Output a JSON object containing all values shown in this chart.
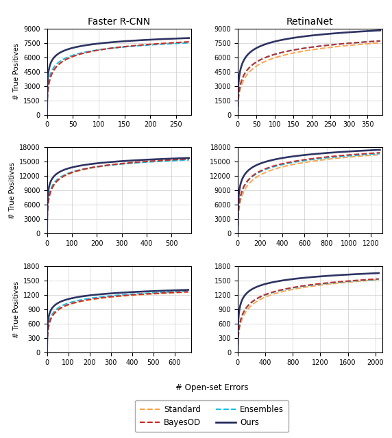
{
  "col_titles": [
    "Faster R-CNN",
    "RetinaNet"
  ],
  "colors": {
    "Standard": "#FFA040",
    "BayesOD": "#CC2222",
    "Ensembles": "#00BFEE",
    "Ours": "#1C2356"
  },
  "legend_order": [
    "Standard",
    "BayesOD",
    "Ensembles",
    "Ours"
  ],
  "xlabel": "# Open-set Errors",
  "ylabel": "# True Positives",
  "row_configs": [
    {
      "frcnn": {
        "xlim": [
          0,
          280
        ],
        "ylim": [
          0,
          9000
        ],
        "xticks": [
          0,
          50,
          100,
          150,
          200,
          250
        ],
        "yticks": [
          0,
          1500,
          3000,
          4500,
          6000,
          7500,
          9000
        ],
        "curves": {
          "Standard": {
            "x_max": 275,
            "y_sat": 7600,
            "knee": 8,
            "power": 0.38
          },
          "BayesOD": {
            "x_max": 275,
            "y_sat": 7600,
            "knee": 8,
            "power": 0.38
          },
          "Ensembles": {
            "x_max": 275,
            "y_sat": 7500,
            "knee": 6,
            "power": 0.35
          },
          "Ours": {
            "x_max": 275,
            "y_sat": 8000,
            "knee": 3,
            "power": 0.3
          }
        }
      },
      "retina": {
        "xlim": [
          0,
          390
        ],
        "ylim": [
          0,
          9000
        ],
        "xticks": [
          0,
          50,
          100,
          150,
          200,
          250,
          300,
          350
        ],
        "yticks": [
          0,
          1500,
          3000,
          4500,
          6000,
          7500,
          9000
        ],
        "curves": {
          "Standard": {
            "x_max": 385,
            "y_sat": 7500,
            "knee": 20,
            "power": 0.45
          },
          "BayesOD": {
            "x_max": 385,
            "y_sat": 7700,
            "knee": 15,
            "power": 0.42
          },
          "Ensembles": {
            "x_max": 385,
            "y_sat": 7700,
            "knee": 15,
            "power": 0.42
          },
          "Ours": {
            "x_max": 385,
            "y_sat": 8800,
            "knee": 8,
            "power": 0.35
          }
        }
      }
    },
    {
      "frcnn": {
        "xlim": [
          0,
          580
        ],
        "ylim": [
          0,
          18000
        ],
        "xticks": [
          0,
          100,
          200,
          300,
          400,
          500
        ],
        "yticks": [
          0,
          3000,
          6000,
          9000,
          12000,
          15000,
          18000
        ],
        "curves": {
          "Standard": {
            "x_max": 570,
            "y_sat": 15500,
            "knee": 10,
            "power": 0.38
          },
          "BayesOD": {
            "x_max": 570,
            "y_sat": 15600,
            "knee": 10,
            "power": 0.38
          },
          "Ensembles": {
            "x_max": 570,
            "y_sat": 15400,
            "knee": 8,
            "power": 0.36
          },
          "Ours": {
            "x_max": 570,
            "y_sat": 15800,
            "knee": 5,
            "power": 0.3
          }
        }
      },
      "retina": {
        "xlim": [
          0,
          1300
        ],
        "ylim": [
          0,
          18000
        ],
        "xticks": [
          0,
          200,
          400,
          600,
          800,
          1000,
          1200
        ],
        "yticks": [
          0,
          3000,
          6000,
          9000,
          12000,
          15000,
          18000
        ],
        "curves": {
          "Standard": {
            "x_max": 1280,
            "y_sat": 16500,
            "knee": 40,
            "power": 0.45
          },
          "BayesOD": {
            "x_max": 1280,
            "y_sat": 16900,
            "knee": 30,
            "power": 0.42
          },
          "Ensembles": {
            "x_max": 1280,
            "y_sat": 16700,
            "knee": 30,
            "power": 0.42
          },
          "Ours": {
            "x_max": 1280,
            "y_sat": 17500,
            "knee": 15,
            "power": 0.35
          }
        }
      }
    },
    {
      "frcnn": {
        "xlim": [
          0,
          680
        ],
        "ylim": [
          0,
          1800
        ],
        "xticks": [
          0,
          100,
          200,
          300,
          400,
          500,
          600
        ],
        "yticks": [
          0,
          300,
          600,
          900,
          1200,
          1500,
          1800
        ],
        "curves": {
          "Standard": {
            "x_max": 665,
            "y_sat": 1260,
            "knee": 12,
            "power": 0.4
          },
          "BayesOD": {
            "x_max": 665,
            "y_sat": 1270,
            "knee": 12,
            "power": 0.4
          },
          "Ensembles": {
            "x_max": 665,
            "y_sat": 1280,
            "knee": 10,
            "power": 0.38
          },
          "Ours": {
            "x_max": 665,
            "y_sat": 1310,
            "knee": 6,
            "power": 0.32
          }
        }
      },
      "retina": {
        "xlim": [
          0,
          2100
        ],
        "ylim": [
          0,
          1800
        ],
        "xticks": [
          0,
          400,
          800,
          1200,
          1600,
          2000
        ],
        "yticks": [
          0,
          300,
          600,
          900,
          1200,
          1500,
          1800
        ],
        "curves": {
          "Standard": {
            "x_max": 2050,
            "y_sat": 1520,
            "knee": 80,
            "power": 0.45
          },
          "BayesOD": {
            "x_max": 2050,
            "y_sat": 1540,
            "knee": 60,
            "power": 0.43
          },
          "Ensembles": {
            "x_max": 2050,
            "y_sat": 1530,
            "knee": 60,
            "power": 0.43
          },
          "Ours": {
            "x_max": 2050,
            "y_sat": 1660,
            "knee": 20,
            "power": 0.35
          }
        }
      }
    }
  ]
}
